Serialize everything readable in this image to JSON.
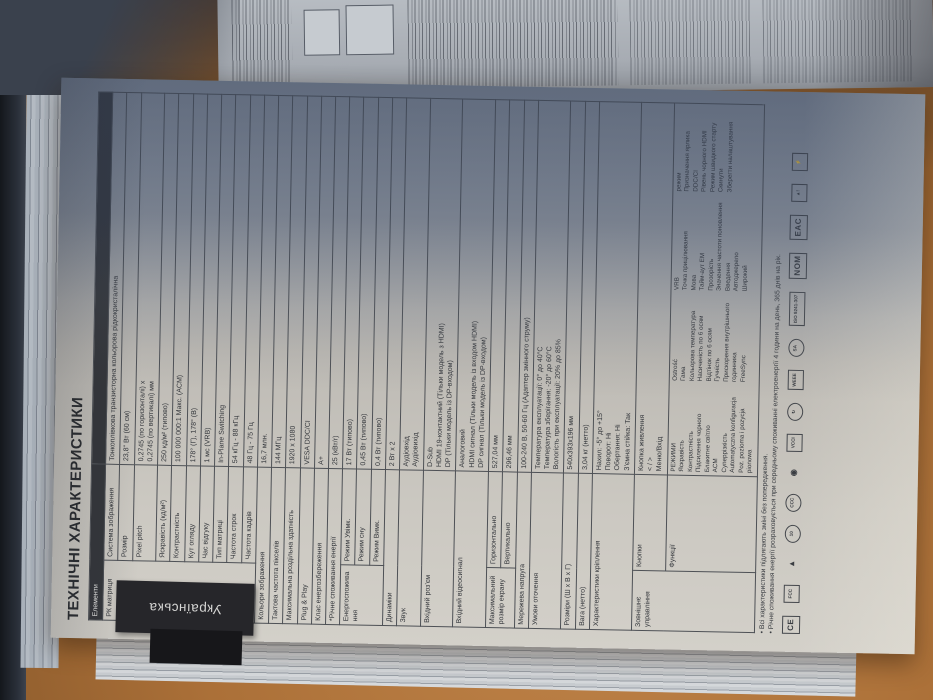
{
  "page": {
    "language_tab": "Українська",
    "title": "ТЕХНІЧНІ ХАРАКТЕРИСТИКИ",
    "table_header": "Елементи",
    "rows": [
      {
        "group": "РК матриця",
        "gspan": 10,
        "sub": "Система зображення",
        "value": "Тонкоплівкова транзисторна кольорова рідкокристалічна"
      },
      {
        "sub": "Розмір",
        "value": "23,8\" Вт (60 см)"
      },
      {
        "sub": "Pixel pitch",
        "value": "0,2745 (по горизонталі) x\n0,2745 (по вертикалі) мм"
      },
      {
        "sub": "Яскравість (кд/м²)",
        "value": "250 кд/м² (типово)"
      },
      {
        "sub": "Контрастність",
        "value": "100 000 000:1 Макс. (ACM)"
      },
      {
        "sub": "Кут огляду",
        "value": "178° (Г), 178° (В)"
      },
      {
        "sub": "Час відгуку",
        "value": "1 мс (VRB)"
      },
      {
        "sub": "Тип матриці",
        "value": "In-Plane Switching"
      },
      {
        "sub": "Частота строк",
        "value": "54 кГц - 88 кГц"
      },
      {
        "sub": "Частота кадрів",
        "value": "48 Гц - 75 Гц"
      },
      {
        "label": "Кольори зображення",
        "value": "16,7 млн."
      },
      {
        "label": "Тактова частота пікселів",
        "value": "144 МГц"
      },
      {
        "label": "Максимальна роздільна здатність",
        "value": "1920 x 1080"
      },
      {
        "label": "Plug & Play",
        "value": "VESA DDC/CI"
      },
      {
        "label": "Клас енергозбереження",
        "value": "A+"
      },
      {
        "label": "*Річне споживання енергії",
        "value": "25 (кВт/г)"
      },
      {
        "group": "Енергоспоживання",
        "gspan": 3,
        "sub": "Режим Увімк.",
        "value": "17 Вт (типово)"
      },
      {
        "sub": "Режим сну",
        "value": "0,45 Вт (типово)"
      },
      {
        "sub": "Режим Вимк.",
        "value": "0,4 Вт (типово)"
      },
      {
        "label": "Динаміки",
        "value": "2 Вт x 2"
      },
      {
        "label": "Звук",
        "value": "Аудіовхід\nАудіовихід"
      },
      {
        "label": "Вхідний роз'єм",
        "value": "D-Sub\nHDMI 19-контактний (Тільки модель з HDMI)\nDP (Тільки модель із DP-входом)"
      },
      {
        "label": "Вхідний відеосигнал",
        "value": "Аналоговий\nHDMI сигнал (Тільки модель із входом HDMI)\nDP сигнал (Тільки модель із DP-входом)"
      },
      {
        "group": "Максимальний розмір екрану",
        "gspan": 2,
        "sub": "Горизонтально",
        "value": "527,04 мм"
      },
      {
        "sub": "Вертикально",
        "value": "296,46 мм"
      },
      {
        "label": "Мережева напруга",
        "value": "100-240 В, 50-60 Гц (Адаптер змінного струму)"
      },
      {
        "label": "Умови оточення",
        "value": "Температура експлуатації: 0° до 40°C\nТемпература зберігання: -20° до 60°C\nВологість при експлуатації: 20% до 85%"
      },
      {
        "label": "Розміри (Ш x В x Г)",
        "value": "540x393x196 мм"
      },
      {
        "label": "Вага (нетто)",
        "value": "3,04 кг (нетто)"
      },
      {
        "label": "Характеристики кріплення",
        "value": "Нахил: -5° до +15°\nПоворот: Ні\nОбертання: Ні\nЗ'ємна стійка: Так"
      },
      {
        "group": "Зовнішнє управління",
        "gspan": 2,
        "sub": "Кнопки",
        "value": "Кнопка живлення\n< / >\nМеню/Вхід"
      },
      {
        "sub": "Функції",
        "functions": true
      }
    ],
    "functions_columns": [
      [
        "РЕЖИМИ",
        "Яскравість",
        "Контрастність",
        "Підсилення чорного",
        "Блакитне світло",
        "ACM",
        "Суперрізкість",
        "Automatyczna konfiguracja",
        "Poz. pozioma i pozycja pionowa"
      ],
      [
        "Ostrość",
        "Гама",
        "Кольорова температура",
        "Насиченість по 6 осям",
        "Відтінок по 6 осям",
        "Гучність",
        "Прискорення внутрішнього годинника",
        "FreeSync"
      ],
      [
        "VRB",
        "Точка прицілювання",
        "Мова",
        "Тайм-аут ЕМ",
        "Прозорість",
        "Значення частоти поновлення",
        "Введення",
        "Автоджерело",
        "Широкий"
      ],
      [
        "режим",
        "Призначення ярлика",
        "DDC/CI",
        "Рівень чорного HDMI",
        "Режим швидкого старту",
        "Скинути",
        "Зберегти налаштування"
      ]
    ],
    "footnotes": [
      "• Всі характеристики підлягають зміні без попередження.",
      "• Річне споживання енергії розраховується при середньому споживанні електроенергії 4 години на день, 365 днів на рік."
    ],
    "cert_icons": [
      {
        "id": "ce-mark",
        "text": "CE",
        "cls": "big"
      },
      {
        "id": "fcc-mark",
        "text": "FCC",
        "cls": ""
      },
      {
        "id": "rohs-triangle",
        "text": "▲",
        "cls": "noborder"
      },
      {
        "id": "china-rohs-10",
        "text": "10",
        "cls": "round"
      },
      {
        "id": "ccc-mark",
        "text": "CCC",
        "cls": "round"
      },
      {
        "id": "bsmi-mark",
        "text": "◉",
        "cls": "noborder"
      },
      {
        "id": "vcci-mark",
        "text": "VCCI",
        "cls": ""
      },
      {
        "id": "rcm-mark",
        "text": "↻",
        "cls": "round"
      },
      {
        "id": "weee-bin",
        "text": "WEEE",
        "cls": ""
      },
      {
        "id": "csa-mark",
        "text": "SA",
        "cls": "round"
      },
      {
        "id": "iso-9241-307",
        "text": "ISO 9241-307",
        "cls": ""
      },
      {
        "id": "nom-mark",
        "text": "NOM",
        "cls": "big"
      },
      {
        "id": "eac-mark",
        "text": "EAC",
        "cls": "big"
      },
      {
        "id": "tuv-box",
        "text": "▲!",
        "cls": ""
      },
      {
        "id": "psb-box",
        "text": "⚡",
        "cls": ""
      }
    ]
  }
}
